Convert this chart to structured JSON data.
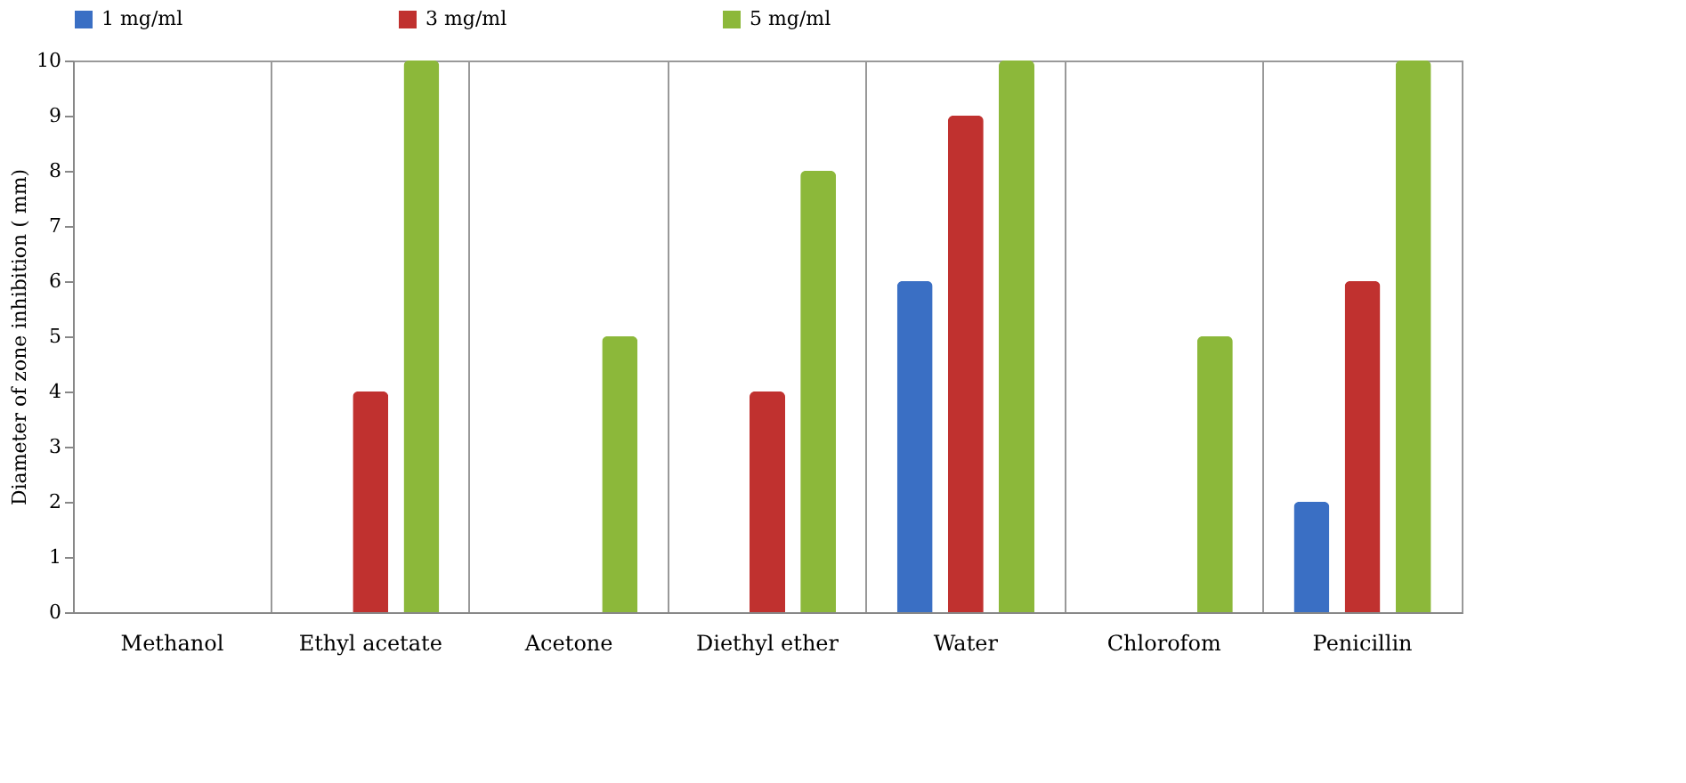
{
  "chart_data": {
    "type": "bar",
    "ylabel": "Diameter of zone inhibition ( mm)",
    "categories": [
      "Methanol",
      "Ethyl acetate",
      "Acetone",
      "Diethyl ether",
      "Water",
      "Chlorofom",
      "Penicillin"
    ],
    "series": [
      {
        "name": "1 mg/ml",
        "color": "#3a6fc4",
        "values": [
          0,
          0,
          0,
          0,
          6,
          0,
          2
        ]
      },
      {
        "name": "3 mg/ml",
        "color": "#c0312f",
        "values": [
          0,
          4,
          0,
          4,
          9,
          0,
          6
        ]
      },
      {
        "name": "5 mg/ml",
        "color": "#8cb83a",
        "values": [
          0,
          10,
          5,
          8,
          10,
          5,
          10
        ]
      }
    ],
    "ylim": [
      0,
      10
    ],
    "yticks": [
      0,
      1,
      2,
      3,
      4,
      5,
      6,
      7,
      8,
      9,
      10
    ],
    "grid": "x",
    "legend": "top"
  }
}
